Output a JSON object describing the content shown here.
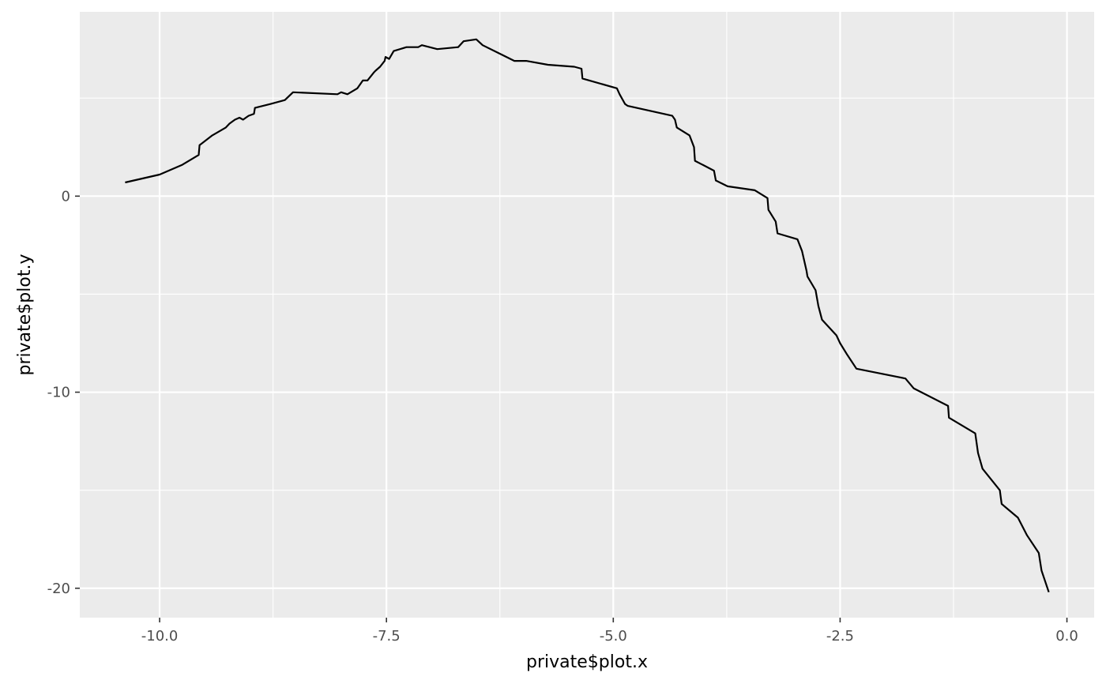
{
  "chart_data": {
    "type": "line",
    "xlabel": "private$plot.x",
    "ylabel": "private$plot.y",
    "xlim": [
      -10.88,
      0.3
    ],
    "ylim": [
      -21.5,
      9.4
    ],
    "x_ticks": [
      -10.0,
      -7.5,
      -5.0,
      -2.5,
      0.0
    ],
    "x_tick_labels": [
      "-10.0",
      "-7.5",
      "-5.0",
      "-2.5",
      "0.0"
    ],
    "y_ticks": [
      -20,
      -10,
      0
    ],
    "y_tick_labels": [
      "-20",
      "-10",
      "0"
    ],
    "grid": true,
    "panel_background": "#ebebeb",
    "line_color": "#000000",
    "series": [
      {
        "x": [
          -10.38,
          -10.0,
          -9.75,
          -9.57,
          -9.56,
          -9.42,
          -9.27,
          -9.23,
          -9.17,
          -9.12,
          -9.08,
          -9.02,
          -8.96,
          -8.95,
          -8.78,
          -8.62,
          -8.53,
          -8.04,
          -8.0,
          -7.93,
          -7.82,
          -7.76,
          -7.71,
          -7.64,
          -7.62,
          -7.57,
          -7.52,
          -7.51,
          -7.47,
          -7.42,
          -7.28,
          -7.15,
          -7.11,
          -6.94,
          -6.71,
          -6.65,
          -6.51,
          -6.44,
          -6.09,
          -6.07,
          -5.96,
          -5.72,
          -5.43,
          -5.35,
          -5.34,
          -4.96,
          -4.93,
          -4.87,
          -4.84,
          -4.35,
          -4.32,
          -4.3,
          -4.16,
          -4.11,
          -4.1,
          -3.89,
          -3.87,
          -3.74,
          -3.44,
          -3.3,
          -3.29,
          -3.21,
          -3.19,
          -2.97,
          -2.92,
          -2.87,
          -2.86,
          -2.77,
          -2.74,
          -2.7,
          -2.54,
          -2.5,
          -2.42,
          -2.32,
          -1.78,
          -1.69,
          -1.31,
          -1.3,
          -1.01,
          -0.98,
          -0.93,
          -0.74,
          -0.72,
          -0.54,
          -0.44,
          -0.31,
          -0.28,
          -0.2
        ],
        "y": [
          0.7,
          1.1,
          1.6,
          2.1,
          2.6,
          3.1,
          3.5,
          3.7,
          3.9,
          4.0,
          3.9,
          4.1,
          4.2,
          4.5,
          4.7,
          4.9,
          5.3,
          5.2,
          5.3,
          5.2,
          5.5,
          5.9,
          5.9,
          6.3,
          6.4,
          6.6,
          6.9,
          7.1,
          7.0,
          7.4,
          7.6,
          7.6,
          7.7,
          7.5,
          7.6,
          7.9,
          8.0,
          7.7,
          6.9,
          6.9,
          6.9,
          6.7,
          6.6,
          6.5,
          6.0,
          5.5,
          5.2,
          4.7,
          4.6,
          4.1,
          3.9,
          3.5,
          3.1,
          2.5,
          1.8,
          1.3,
          0.8,
          0.5,
          0.3,
          -0.1,
          -0.7,
          -1.3,
          -1.9,
          -2.2,
          -2.8,
          -3.8,
          -4.1,
          -4.8,
          -5.6,
          -6.3,
          -7.1,
          -7.5,
          -8.1,
          -8.8,
          -9.3,
          -9.8,
          -10.7,
          -11.3,
          -12.1,
          -13.1,
          -13.9,
          -15.0,
          -15.7,
          -16.4,
          -17.3,
          -18.2,
          -19.1,
          -20.2
        ]
      }
    ]
  }
}
